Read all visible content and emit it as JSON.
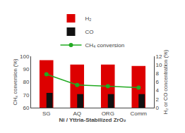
{
  "chart_data": {
    "type": "bar",
    "categories": [
      "SG",
      "AQ",
      "ORG",
      "Comm"
    ],
    "series": [
      {
        "name": "H₂",
        "color": "#dd0000",
        "values": [
          97,
          93.5,
          93.5,
          92.5
        ]
      },
      {
        "name": "CO",
        "color": "#111111",
        "values": [
          71.5,
          70.5,
          70.5,
          70.5
        ]
      },
      {
        "name": "CH₄ conversion",
        "type": "line",
        "axis": "y2",
        "color": "#22aa22",
        "marker": "circle",
        "values": [
          7.8,
          5.3,
          5.0,
          4.7
        ]
      }
    ],
    "xlabel": "Ni / Yttria-Stabilized ZrO₂",
    "ylabel": "CH₄ conversion (%)",
    "y2label": "H₂ or CO concentration (%)",
    "ylim": [
      60,
      100
    ],
    "yticks": [
      60,
      70,
      80,
      90,
      100
    ],
    "y2lim": [
      0,
      12
    ],
    "y2ticks": [
      0,
      2,
      4,
      6,
      8,
      10,
      12
    ],
    "grid": false,
    "legend": "top"
  }
}
